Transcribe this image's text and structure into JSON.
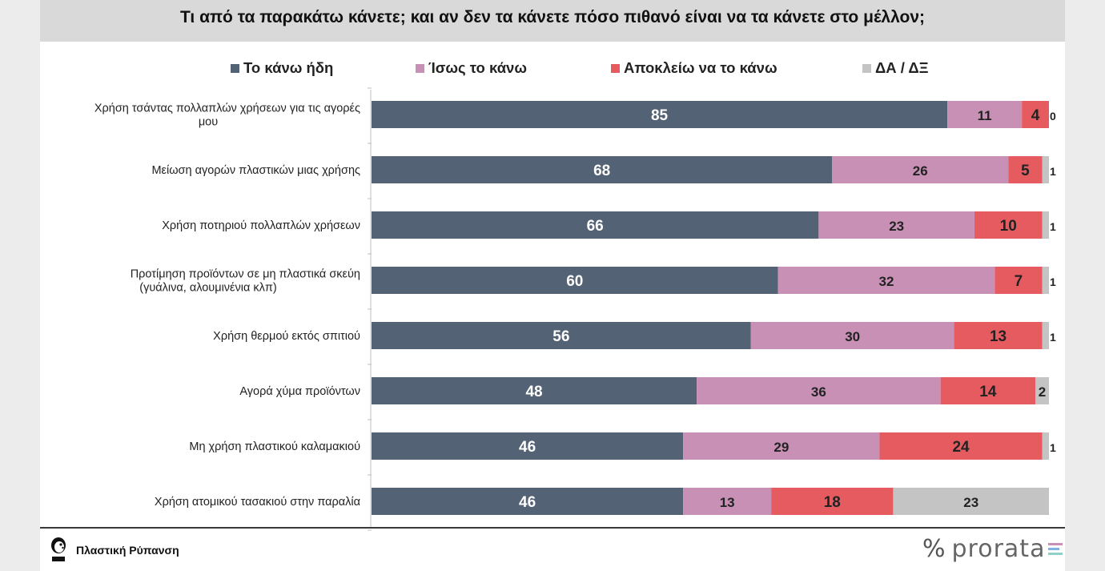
{
  "header": {
    "title": "Τι από τα παρακάτω κάνετε; και αν δεν τα κάνετε πόσο πιθανό είναι να τα κάνετε στο μέλλον;"
  },
  "legend": {
    "items": [
      {
        "label": "Το κάνω ήδη",
        "color": "#536274"
      },
      {
        "label": "Ίσως το κάνω",
        "color": "#c990b5"
      },
      {
        "label": "Αποκλείω να το κάνω",
        "color": "#e65b60"
      },
      {
        "label": "ΔΑ / ΔΞ",
        "color": "#c4c4c4"
      }
    ]
  },
  "chart_data": {
    "type": "bar",
    "orientation": "horizontal",
    "stacked": true,
    "categories": [
      "Χρήση τσάντας πολλαπλών χρήσεων για τις αγορές μου",
      "Μείωση αγορών πλαστικών μιας χρήσης",
      "Χρήση ποτηριού πολλαπλών χρήσεων",
      "Προτίμηση προϊόντων σε μη πλαστικά σκεύη (γυάλινα, αλουμινένια κλπ)",
      "Χρήση θερμού εκτός σπιτιού",
      "Αγορά χύμα προϊόντων",
      "Μη χρήση πλαστικού καλαμακιού",
      "Χρήση ατομικού τασακιού στην παραλία"
    ],
    "series": [
      {
        "name": "Το κάνω ήδη",
        "color": "#536274",
        "values": [
          85,
          68,
          66,
          60,
          56,
          48,
          46,
          46
        ]
      },
      {
        "name": "Ίσως το κάνω",
        "color": "#c990b5",
        "values": [
          11,
          26,
          23,
          32,
          30,
          36,
          29,
          13
        ]
      },
      {
        "name": "Αποκλείω να το κάνω",
        "color": "#e65b60",
        "values": [
          4,
          5,
          10,
          7,
          13,
          14,
          24,
          18
        ]
      },
      {
        "name": "ΔΑ / ΔΞ",
        "color": "#c4c4c4",
        "values": [
          0,
          1,
          1,
          1,
          1,
          2,
          1,
          23
        ]
      }
    ],
    "xlim": [
      0,
      100
    ],
    "grid": false,
    "legend_position": "top"
  },
  "footer": {
    "text": "Πλαστική Ρύπανση",
    "logo_left": "WWF",
    "logo_right": "prorata"
  }
}
